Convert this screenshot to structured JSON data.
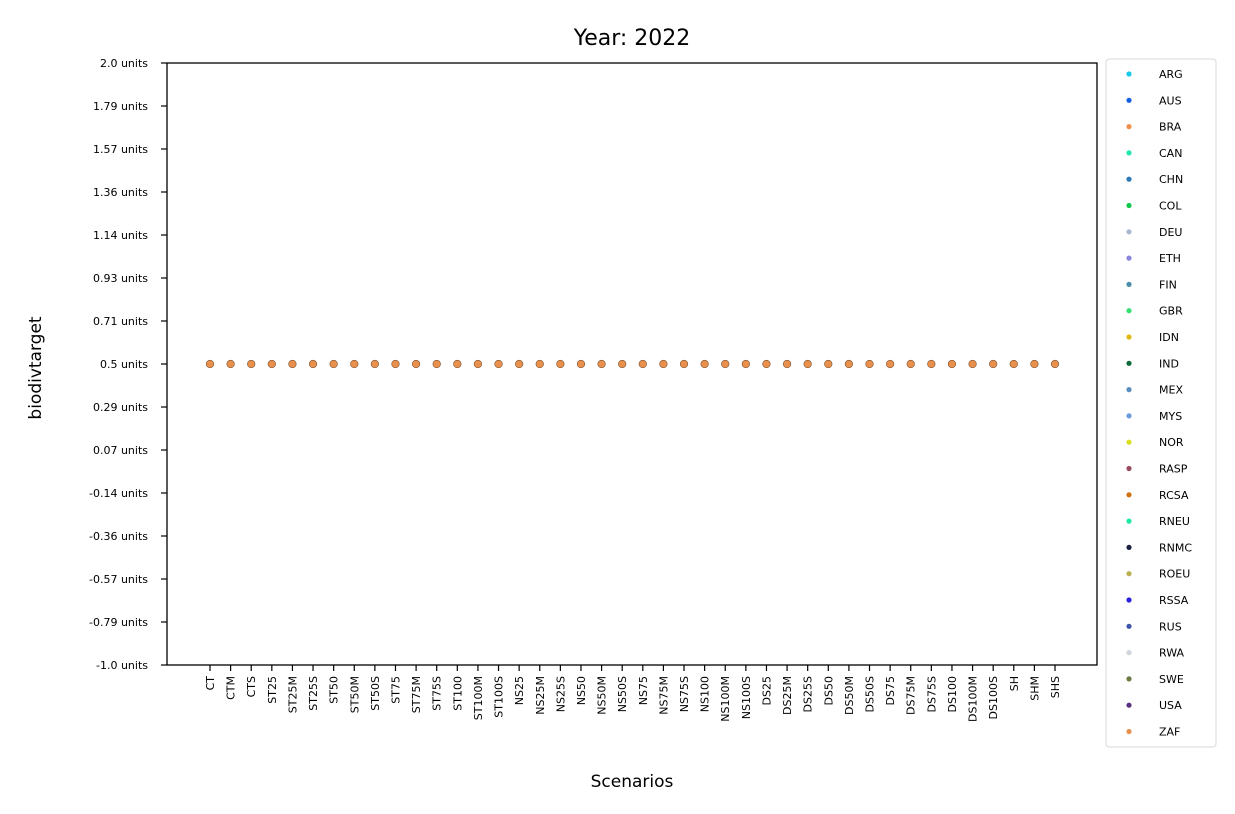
{
  "chart_data": {
    "type": "scatter",
    "title": "Year: 2022",
    "xlabel": "Scenarios",
    "ylabel": "biodivtarget",
    "ylim": [
      -1.0,
      2.0
    ],
    "yticks": [
      "2.0 units",
      "1.79 units",
      "1.57 units",
      "1.36 units",
      "1.14 units",
      "0.93 units",
      "0.71 units",
      "0.5 units",
      "0.29 units",
      "0.07 units",
      "-0.14 units",
      "-0.36 units",
      "-0.57 units",
      "-0.79 units",
      "-1.0 units"
    ],
    "categories": [
      "CT",
      "CTM",
      "CTS",
      "ST25",
      "ST25M",
      "ST25S",
      "ST50",
      "ST50M",
      "ST50S",
      "ST75",
      "ST75M",
      "ST75S",
      "ST100",
      "ST100M",
      "ST100S",
      "NS25",
      "NS25M",
      "NS25S",
      "NS50",
      "NS50M",
      "NS50S",
      "NS75",
      "NS75M",
      "NS75S",
      "NS100",
      "NS100M",
      "NS100S",
      "DS25",
      "DS25M",
      "DS25S",
      "DS50",
      "DS50M",
      "DS50S",
      "DS75",
      "DS75M",
      "DS75S",
      "DS100",
      "DS100M",
      "DS100S",
      "SH",
      "SHM",
      "SHS"
    ],
    "value": 0.5,
    "legend_position": "outside-right",
    "grid": false,
    "series": [
      {
        "name": "ARG",
        "color": "#17c9e8"
      },
      {
        "name": "AUS",
        "color": "#1560e0"
      },
      {
        "name": "BRA",
        "color": "#f0904c"
      },
      {
        "name": "CAN",
        "color": "#1ee8b0"
      },
      {
        "name": "CHN",
        "color": "#2a78b8"
      },
      {
        "name": "COL",
        "color": "#12c84a"
      },
      {
        "name": "DEU",
        "color": "#a8b8cc"
      },
      {
        "name": "ETH",
        "color": "#8a86dc"
      },
      {
        "name": "FIN",
        "color": "#4a8ea8"
      },
      {
        "name": "GBR",
        "color": "#34e070"
      },
      {
        "name": "IDN",
        "color": "#e0b814"
      },
      {
        "name": "IND",
        "color": "#0a6a3a"
      },
      {
        "name": "MEX",
        "color": "#5a8ec0"
      },
      {
        "name": "MYS",
        "color": "#6e9ae0"
      },
      {
        "name": "NOR",
        "color": "#d8e020"
      },
      {
        "name": "RASP",
        "color": "#9a4a5e"
      },
      {
        "name": "RCSA",
        "color": "#d07010"
      },
      {
        "name": "RNEU",
        "color": "#1ee8a8"
      },
      {
        "name": "RNMC",
        "color": "#1a2240"
      },
      {
        "name": "ROEU",
        "color": "#b8b050"
      },
      {
        "name": "RSSA",
        "color": "#2a20e0"
      },
      {
        "name": "RUS",
        "color": "#3e56a8"
      },
      {
        "name": "RWA",
        "color": "#d0d4dc"
      },
      {
        "name": "SWE",
        "color": "#6a7a40"
      },
      {
        "name": "USA",
        "color": "#5a3080"
      },
      {
        "name": "ZAF",
        "color": "#e8904c"
      }
    ]
  }
}
